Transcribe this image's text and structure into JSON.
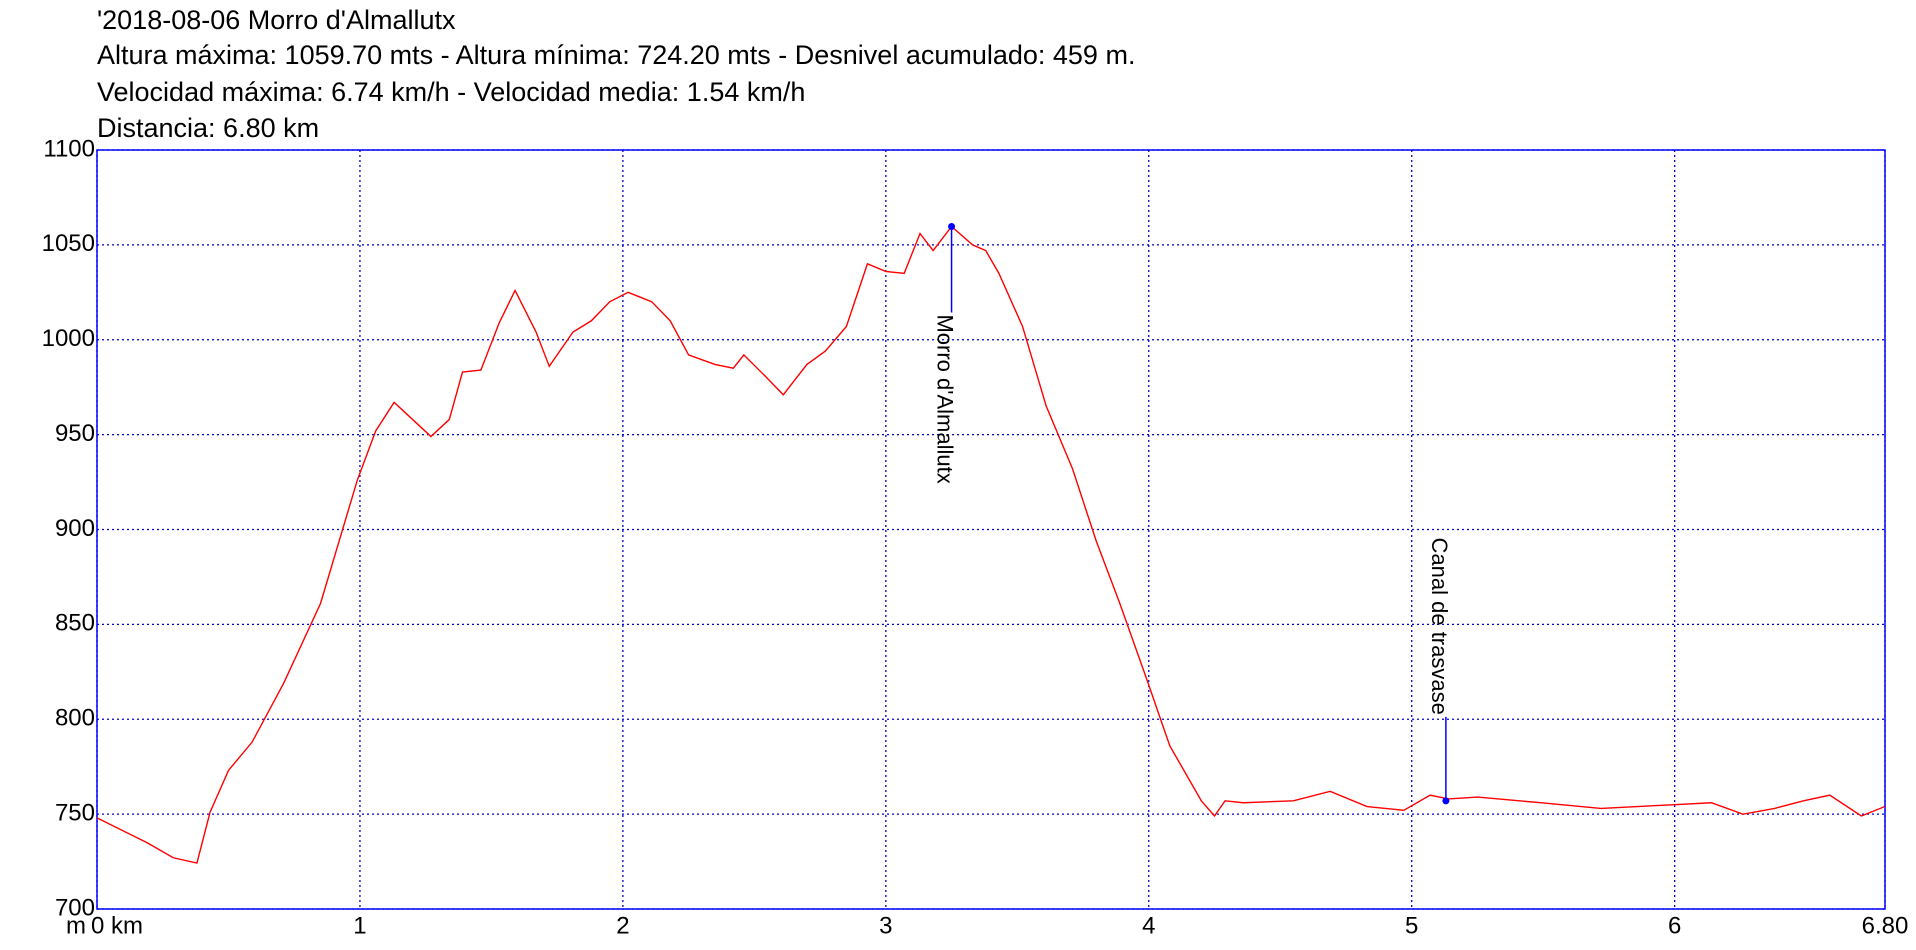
{
  "chart_data": {
    "type": "line",
    "title": "'2018-08-06 Morro d'Almallutx",
    "subtitle": [
      "Altura máxima: 1059.70 mts - Altura mínima: 724.20 mts - Desnivel acumulado: 459 m.",
      "Velocidad máxima: 6.74 km/h - Velocidad media: 1.54 km/h",
      "Distancia: 6.80 km"
    ],
    "y_label": "m",
    "x": [
      0,
      0.19,
      0.29,
      0.38,
      0.43,
      0.5,
      0.59,
      0.71,
      0.85,
      0.99,
      1.06,
      1.13,
      1.2,
      1.27,
      1.34,
      1.39,
      1.46,
      1.53,
      1.59,
      1.67,
      1.72,
      1.81,
      1.88,
      1.95,
      2.02,
      2.11,
      2.18,
      2.25,
      2.35,
      2.42,
      2.46,
      2.54,
      2.61,
      2.7,
      2.77,
      2.85,
      2.93,
      3.0,
      3.07,
      3.13,
      3.18,
      3.25,
      3.33,
      3.38,
      3.43,
      3.52,
      3.61,
      3.71,
      3.8,
      3.89,
      3.99,
      4.08,
      4.2,
      4.25,
      4.29,
      4.36,
      4.55,
      4.69,
      4.83,
      4.97,
      5.07,
      5.14,
      5.25,
      5.49,
      5.72,
      6.0,
      6.14,
      6.26,
      6.38,
      6.49,
      6.59,
      6.71,
      6.8
    ],
    "series": [
      {
        "name": "Altura",
        "color": "#ff0000",
        "values": [
          748,
          735,
          727,
          724.2,
          751,
          773,
          788,
          819,
          861,
          926,
          952,
          967,
          958,
          949,
          958,
          983,
          984,
          1009,
          1026,
          1004,
          986,
          1004,
          1010,
          1020,
          1025,
          1020,
          1010,
          992,
          987,
          985,
          992,
          981,
          971,
          987,
          994,
          1007,
          1040,
          1036,
          1035,
          1056,
          1047,
          1059.7,
          1050,
          1047,
          1035,
          1007,
          965,
          932,
          894,
          861,
          822,
          786,
          757,
          749,
          757,
          756,
          757,
          762,
          754,
          752,
          760,
          758,
          759,
          756,
          753,
          755,
          756,
          750,
          753,
          757,
          760,
          749,
          754
        ]
      }
    ],
    "annotations": [
      {
        "label": "Morro d'Almallutx",
        "x": 3.25,
        "y": 1059.7
      },
      {
        "label": "Canal de trasvase",
        "x": 5.13,
        "y": 757
      }
    ],
    "annotation_color": "#0000ff",
    "xlim": [
      0,
      6.8
    ],
    "ylim": [
      700,
      1100
    ],
    "xticks": [
      {
        "value": 0,
        "label": "0 km"
      },
      1,
      2,
      3,
      4,
      5,
      6,
      {
        "value": 6.8,
        "label": "6.80"
      }
    ],
    "yticks": [
      700,
      750,
      800,
      850,
      900,
      950,
      1000,
      1050,
      1100
    ],
    "grid": true,
    "grid_color": "#0000cc",
    "frame_color": "#0000ff"
  }
}
